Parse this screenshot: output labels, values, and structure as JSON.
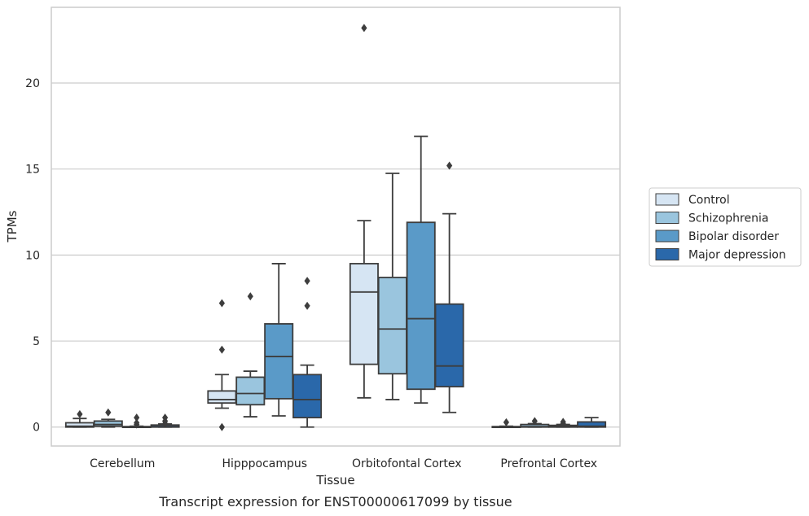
{
  "caption": "Transcript expression for ENST00000617099 by tissue",
  "chart_data": {
    "type": "box",
    "title": "",
    "xlabel": "Tissue",
    "ylabel": "TPMs",
    "categories": [
      "Cerebellum",
      "Hipppocampus",
      "Orbitofontal Cortex",
      "Prefrontal Cortex"
    ],
    "ylim": [
      -1.1,
      24.4
    ],
    "yticks": [
      0,
      5,
      10,
      15,
      20
    ],
    "grid": "y",
    "legend_position": "right",
    "series": [
      {
        "name": "Control",
        "color": "#d6e5f3",
        "boxes": [
          {
            "q1": 0.0,
            "median": 0.05,
            "q3": 0.25,
            "whisker_low": 0.0,
            "whisker_high": 0.5,
            "outliers": [
              0.75
            ]
          },
          {
            "q1": 1.4,
            "median": 1.6,
            "q3": 2.1,
            "whisker_low": 1.1,
            "whisker_high": 3.05,
            "outliers": [
              7.2,
              4.5,
              0.0
            ]
          },
          {
            "q1": 3.65,
            "median": 7.85,
            "q3": 9.5,
            "whisker_low": 1.7,
            "whisker_high": 12.0,
            "outliers": [
              23.2
            ]
          },
          {
            "q1": 0.0,
            "median": 0.0,
            "q3": 0.03,
            "whisker_low": 0.0,
            "whisker_high": 0.05,
            "outliers": [
              0.28
            ]
          }
        ]
      },
      {
        "name": "Schizophrenia",
        "color": "#9ac5de",
        "boxes": [
          {
            "q1": 0.05,
            "median": 0.15,
            "q3": 0.35,
            "whisker_low": 0.0,
            "whisker_high": 0.45,
            "outliers": [
              0.85
            ]
          },
          {
            "q1": 1.3,
            "median": 1.95,
            "q3": 2.9,
            "whisker_low": 0.6,
            "whisker_high": 3.25,
            "outliers": [
              7.6
            ]
          },
          {
            "q1": 3.1,
            "median": 5.7,
            "q3": 8.7,
            "whisker_low": 1.6,
            "whisker_high": 14.75,
            "outliers": []
          },
          {
            "q1": 0.0,
            "median": 0.03,
            "q3": 0.15,
            "whisker_low": 0.0,
            "whisker_high": 0.2,
            "outliers": [
              0.35
            ]
          }
        ]
      },
      {
        "name": "Bipolar disorder",
        "color": "#5a9ac8",
        "boxes": [
          {
            "q1": 0.0,
            "median": 0.0,
            "q3": 0.03,
            "whisker_low": 0.0,
            "whisker_high": 0.05,
            "outliers": [
              0.55,
              0.25,
              0.15
            ]
          },
          {
            "q1": 1.65,
            "median": 4.1,
            "q3": 6.0,
            "whisker_low": 0.65,
            "whisker_high": 9.5,
            "outliers": []
          },
          {
            "q1": 2.2,
            "median": 6.3,
            "q3": 11.9,
            "whisker_low": 1.4,
            "whisker_high": 16.9,
            "outliers": []
          },
          {
            "q1": 0.0,
            "median": 0.02,
            "q3": 0.1,
            "whisker_low": 0.0,
            "whisker_high": 0.15,
            "outliers": [
              0.3,
              0.2
            ]
          }
        ]
      },
      {
        "name": "Major depression",
        "color": "#2a68aa",
        "boxes": [
          {
            "q1": 0.0,
            "median": 0.03,
            "q3": 0.12,
            "whisker_low": 0.0,
            "whisker_high": 0.18,
            "outliers": [
              0.55,
              0.35,
              0.2
            ]
          },
          {
            "q1": 0.55,
            "median": 1.6,
            "q3": 3.05,
            "whisker_low": 0.0,
            "whisker_high": 3.6,
            "outliers": [
              8.5,
              7.05
            ]
          },
          {
            "q1": 2.35,
            "median": 3.55,
            "q3": 7.15,
            "whisker_low": 0.85,
            "whisker_high": 12.4,
            "outliers": [
              15.2
            ]
          },
          {
            "q1": 0.0,
            "median": 0.05,
            "q3": 0.3,
            "whisker_low": 0.0,
            "whisker_high": 0.55,
            "outliers": []
          }
        ]
      }
    ]
  }
}
